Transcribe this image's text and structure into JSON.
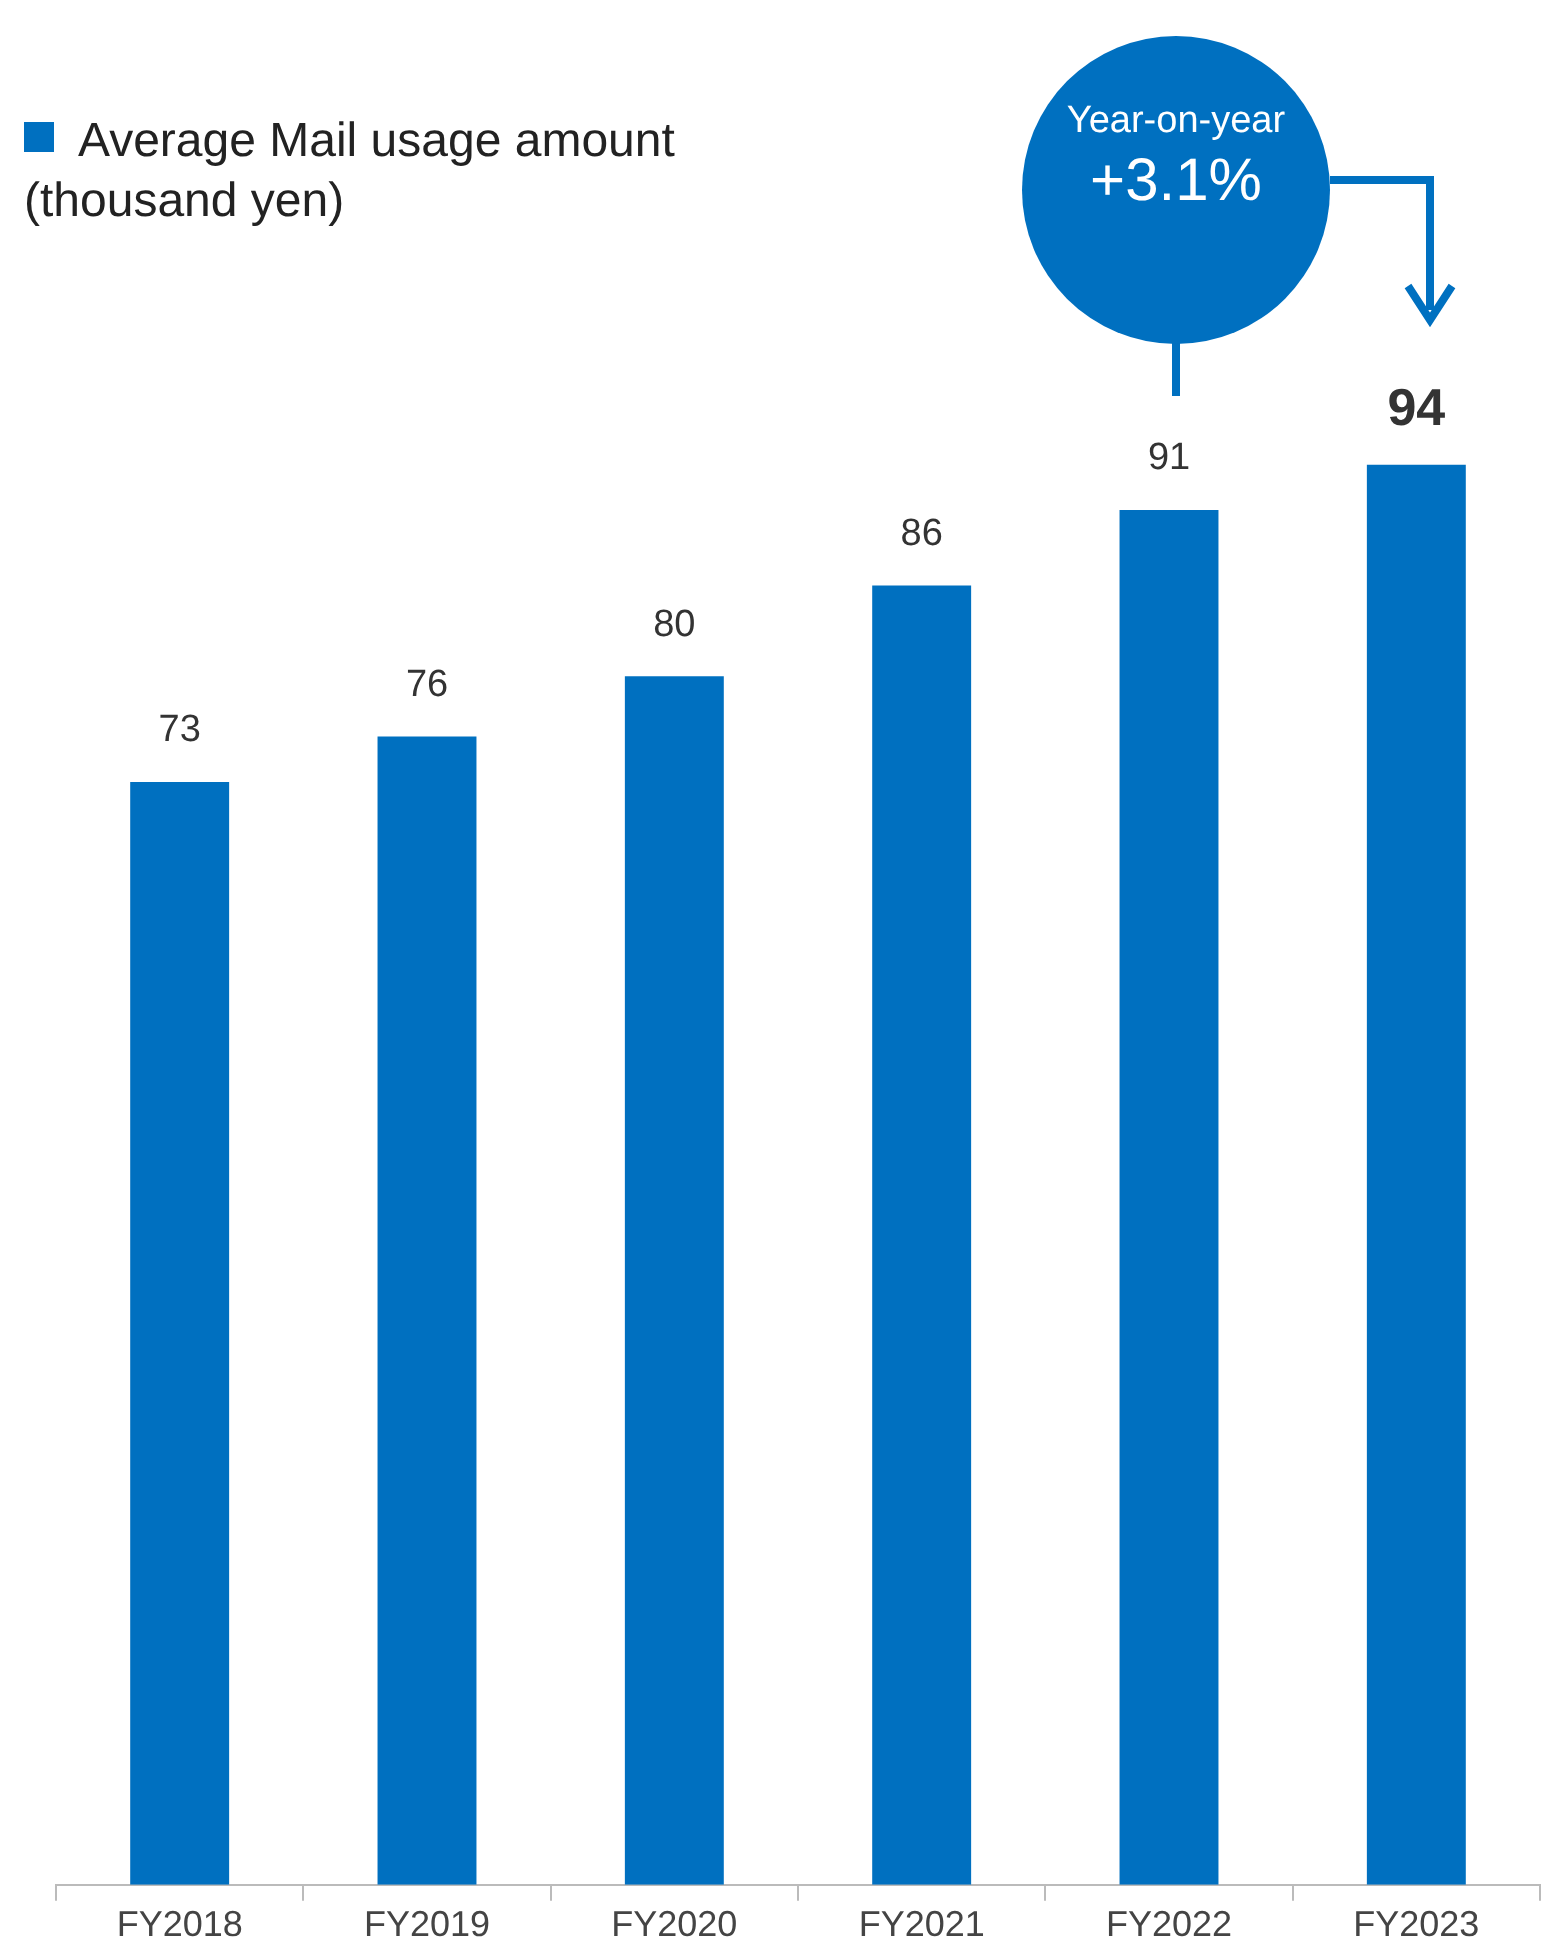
{
  "chart_data": {
    "type": "bar",
    "categories": [
      "FY2018",
      "FY2019",
      "FY2020",
      "FY2021",
      "FY2022",
      "FY2023"
    ],
    "series": [
      {
        "name": "Average Mail usage amount\n(thousand yen)",
        "color": "#0070c0",
        "values": [
          73,
          76,
          80,
          86,
          91,
          94
        ]
      }
    ],
    "data_labels": true,
    "legend": "top left",
    "grid": false,
    "annotations": [
      "Year-on-year",
      "+3.1%"
    ]
  }
}
